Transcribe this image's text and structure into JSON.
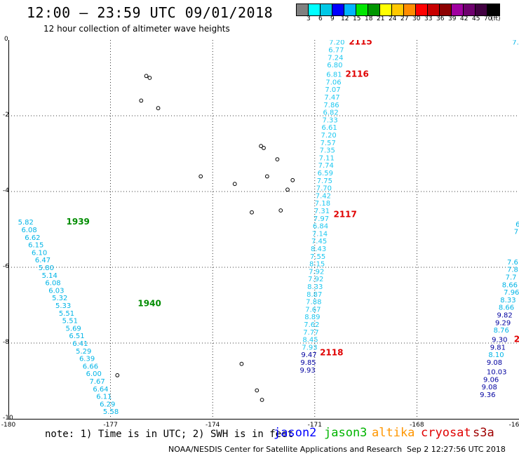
{
  "header": {
    "title": "12:00 — 23:59 UTC 09/01/2018",
    "subtitle": "12 hour collection of altimeter wave heights"
  },
  "legend": {
    "unit": "(ft)",
    "swatches": [
      {
        "color": "#808080",
        "label": "3"
      },
      {
        "color": "#00ffff",
        "label": "6"
      },
      {
        "color": "#00c8e6",
        "label": "9"
      },
      {
        "color": "#0000ff",
        "label": "12"
      },
      {
        "color": "#00b4ff",
        "label": "15"
      },
      {
        "color": "#00e600",
        "label": "18"
      },
      {
        "color": "#009600",
        "label": "21"
      },
      {
        "color": "#ffff00",
        "label": "24"
      },
      {
        "color": "#ffc800",
        "label": "27"
      },
      {
        "color": "#ff8c00",
        "label": "30"
      },
      {
        "color": "#ff0000",
        "label": "33"
      },
      {
        "color": "#c80000",
        "label": "36"
      },
      {
        "color": "#8c0000",
        "label": "39"
      },
      {
        "color": "#a000a0",
        "label": "42"
      },
      {
        "color": "#6e006e",
        "label": "45"
      },
      {
        "color": "#400040",
        "label": "70"
      },
      {
        "color": "#000000",
        "label": ""
      }
    ]
  },
  "map": {
    "lon_range": [
      -180,
      -165
    ],
    "lat_range": [
      -10,
      0
    ],
    "x_ticks": [
      "-180",
      "-177",
      "-174",
      "-171",
      "-168",
      "-16"
    ],
    "y_ticks": [
      "0",
      "-2",
      "-4",
      "-6",
      "-8",
      "-10"
    ],
    "grid": "dotted"
  },
  "chart_data": {
    "type": "scatter",
    "x_axis": "longitude",
    "y_axis": "latitude",
    "tracks": [
      {
        "name": "jason3",
        "time_labels": [
          {
            "text": "1939",
            "lon": -178.3,
            "lat": -4.8
          },
          {
            "text": "1940",
            "lon": -176.2,
            "lat": -6.95
          }
        ],
        "points": [
          {
            "lon": -179.72,
            "lat": -4.8,
            "v": "5.82"
          },
          {
            "lon": -179.62,
            "lat": -5.0,
            "v": "6.08"
          },
          {
            "lon": -179.52,
            "lat": -5.2,
            "v": "6.62"
          },
          {
            "lon": -179.42,
            "lat": -5.4,
            "v": "6.15"
          },
          {
            "lon": -179.32,
            "lat": -5.6,
            "v": "6.10"
          },
          {
            "lon": -179.22,
            "lat": -5.8,
            "v": "6.47"
          },
          {
            "lon": -179.12,
            "lat": -6.0,
            "v": "5.80"
          },
          {
            "lon": -179.02,
            "lat": -6.2,
            "v": "5.14"
          },
          {
            "lon": -178.92,
            "lat": -6.4,
            "v": "6.08"
          },
          {
            "lon": -178.82,
            "lat": -6.6,
            "v": "6.03"
          },
          {
            "lon": -178.72,
            "lat": -6.8,
            "v": "5.32"
          },
          {
            "lon": -178.62,
            "lat": -7.0,
            "v": "5.33"
          },
          {
            "lon": -178.52,
            "lat": -7.2,
            "v": "5.51"
          },
          {
            "lon": -178.42,
            "lat": -7.4,
            "v": "5.51"
          },
          {
            "lon": -178.32,
            "lat": -7.6,
            "v": "5.69"
          },
          {
            "lon": -178.22,
            "lat": -7.8,
            "v": "6.51"
          },
          {
            "lon": -178.12,
            "lat": -8.0,
            "v": "6.41"
          },
          {
            "lon": -178.02,
            "lat": -8.2,
            "v": "5.29"
          },
          {
            "lon": -177.92,
            "lat": -8.4,
            "v": "6.39"
          },
          {
            "lon": -177.82,
            "lat": -8.6,
            "v": "6.66"
          },
          {
            "lon": -177.72,
            "lat": -8.8,
            "v": "6.00"
          },
          {
            "lon": -177.62,
            "lat": -9.0,
            "v": "7.67"
          },
          {
            "lon": -177.52,
            "lat": -9.2,
            "v": "6.64"
          },
          {
            "lon": -177.42,
            "lat": -9.4,
            "v": "6.11"
          },
          {
            "lon": -177.32,
            "lat": -9.6,
            "v": "6.29"
          },
          {
            "lon": -177.22,
            "lat": -9.8,
            "v": "5.58"
          }
        ]
      },
      {
        "name": "cryosat",
        "time_labels": [
          {
            "text": "2115",
            "lon": -170.0,
            "lat": -0.05
          },
          {
            "text": "2116",
            "lon": -170.1,
            "lat": -0.9
          },
          {
            "text": "2117",
            "lon": -170.45,
            "lat": -4.6
          },
          {
            "text": "2118",
            "lon": -170.85,
            "lat": -8.25
          }
        ],
        "points": [
          {
            "lon": -170.58,
            "lat": -0.05,
            "v": "7.20"
          },
          {
            "lon": -170.6,
            "lat": -0.25,
            "v": "6.77"
          },
          {
            "lon": -170.62,
            "lat": -0.45,
            "v": "7.24"
          },
          {
            "lon": -170.64,
            "lat": -0.65,
            "v": "6.80"
          },
          {
            "lon": -170.66,
            "lat": -0.9,
            "v": "6.81"
          },
          {
            "lon": -170.68,
            "lat": -1.1,
            "v": "7.06"
          },
          {
            "lon": -170.7,
            "lat": -1.3,
            "v": "7.07"
          },
          {
            "lon": -170.72,
            "lat": -1.5,
            "v": "7.47"
          },
          {
            "lon": -170.74,
            "lat": -1.7,
            "v": "7.86"
          },
          {
            "lon": -170.76,
            "lat": -1.9,
            "v": "6.82"
          },
          {
            "lon": -170.78,
            "lat": -2.1,
            "v": "7.33"
          },
          {
            "lon": -170.8,
            "lat": -2.3,
            "v": "6.61"
          },
          {
            "lon": -170.82,
            "lat": -2.5,
            "v": "7.20"
          },
          {
            "lon": -170.84,
            "lat": -2.7,
            "v": "7.57"
          },
          {
            "lon": -170.86,
            "lat": -2.9,
            "v": "7.35"
          },
          {
            "lon": -170.88,
            "lat": -3.1,
            "v": "7.11"
          },
          {
            "lon": -170.9,
            "lat": -3.3,
            "v": "7.74"
          },
          {
            "lon": -170.92,
            "lat": -3.5,
            "v": "6.59"
          },
          {
            "lon": -170.94,
            "lat": -3.7,
            "v": "7.75"
          },
          {
            "lon": -170.96,
            "lat": -3.9,
            "v": "7.70"
          },
          {
            "lon": -170.98,
            "lat": -4.1,
            "v": "7.42"
          },
          {
            "lon": -171.0,
            "lat": -4.3,
            "v": "7.18"
          },
          {
            "lon": -171.02,
            "lat": -4.5,
            "v": "7.31"
          },
          {
            "lon": -171.04,
            "lat": -4.7,
            "v": "7.97"
          },
          {
            "lon": -171.06,
            "lat": -4.9,
            "v": "6.84"
          },
          {
            "lon": -171.08,
            "lat": -5.1,
            "v": "7.14"
          },
          {
            "lon": -171.1,
            "lat": -5.3,
            "v": "7.45"
          },
          {
            "lon": -171.12,
            "lat": -5.5,
            "v": "8.43"
          },
          {
            "lon": -171.14,
            "lat": -5.7,
            "v": "7.55"
          },
          {
            "lon": -171.16,
            "lat": -5.9,
            "v": "8.15"
          },
          {
            "lon": -171.18,
            "lat": -6.1,
            "v": "7.92"
          },
          {
            "lon": -171.2,
            "lat": -6.3,
            "v": "7.92"
          },
          {
            "lon": -171.22,
            "lat": -6.5,
            "v": "8.33"
          },
          {
            "lon": -171.24,
            "lat": -6.7,
            "v": "8.87"
          },
          {
            "lon": -171.26,
            "lat": -6.9,
            "v": "7.88"
          },
          {
            "lon": -171.28,
            "lat": -7.1,
            "v": "7.67"
          },
          {
            "lon": -171.3,
            "lat": -7.3,
            "v": "8.89"
          },
          {
            "lon": -171.32,
            "lat": -7.5,
            "v": "7.62"
          },
          {
            "lon": -171.34,
            "lat": -7.7,
            "v": "7.77"
          },
          {
            "lon": -171.36,
            "lat": -7.9,
            "v": "8.45"
          },
          {
            "lon": -171.38,
            "lat": -8.1,
            "v": "7.93"
          }
        ]
      },
      {
        "name": "jason2",
        "time_labels": [],
        "points": [
          {
            "lon": -171.4,
            "lat": -8.3,
            "v": "9.47"
          },
          {
            "lon": -171.42,
            "lat": -8.5,
            "v": "9.85"
          },
          {
            "lon": -171.44,
            "lat": -8.7,
            "v": "9.93"
          }
        ]
      },
      {
        "name": "altika",
        "time_labels": [],
        "points": [
          {
            "lon": -165.2,
            "lat": -0.05,
            "v": "7.",
            "cyan": true
          },
          {
            "lon": -165.2,
            "lat": -0.25,
            "v": "",
            "cyan": true
          },
          {
            "lon": -165.1,
            "lat": -4.85,
            "v": "6",
            "cyan": true
          },
          {
            "lon": -165.15,
            "lat": -5.05,
            "v": "7.",
            "cyan": true
          },
          {
            "lon": -165.2,
            "lat": -5.25,
            "v": "",
            "cyan": true
          },
          {
            "lon": -165.35,
            "lat": -5.85,
            "v": "7.6",
            "cyan": true
          },
          {
            "lon": -165.35,
            "lat": -6.05,
            "v": "7.8",
            "cyan": true
          },
          {
            "lon": -165.4,
            "lat": -6.25,
            "v": "7.7",
            "cyan": true
          },
          {
            "lon": -165.5,
            "lat": -6.45,
            "v": "8.66",
            "cyan": true
          },
          {
            "lon": -165.45,
            "lat": -6.65,
            "v": "7.96",
            "cyan": true
          },
          {
            "lon": -165.55,
            "lat": -6.85,
            "v": "8.33",
            "cyan": true
          },
          {
            "lon": -165.6,
            "lat": -7.05,
            "v": "8.66",
            "cyan": true
          },
          {
            "lon": -165.65,
            "lat": -7.25,
            "v": "9.82",
            "cyan": false
          },
          {
            "lon": -165.7,
            "lat": -7.45,
            "v": "9.29",
            "cyan": false
          },
          {
            "lon": -165.75,
            "lat": -7.65,
            "v": "8.76",
            "cyan": true
          },
          {
            "lon": -165.8,
            "lat": -7.9,
            "v": "9.30",
            "cyan": false
          },
          {
            "lon": -165.85,
            "lat": -8.1,
            "v": "9.81",
            "cyan": false
          },
          {
            "lon": -165.9,
            "lat": -8.3,
            "v": "8.10",
            "cyan": true
          },
          {
            "lon": -165.95,
            "lat": -8.5,
            "v": "9.08",
            "cyan": false
          },
          {
            "lon": -165.95,
            "lat": -8.75,
            "v": "10.03",
            "cyan": false
          },
          {
            "lon": -166.05,
            "lat": -8.95,
            "v": "9.06",
            "cyan": false
          },
          {
            "lon": -166.1,
            "lat": -9.15,
            "v": "9.08",
            "cyan": false
          },
          {
            "lon": -166.15,
            "lat": -9.35,
            "v": "9.36",
            "cyan": false
          }
        ]
      }
    ],
    "extra_labels": [
      {
        "text": "2",
        "lon": -165.15,
        "lat": -7.9,
        "color": "#e00000"
      }
    ],
    "islands": [
      {
        "lon": -175.95,
        "lat": -0.95
      },
      {
        "lon": -175.85,
        "lat": -1.0
      },
      {
        "lon": -176.1,
        "lat": -1.6
      },
      {
        "lon": -175.6,
        "lat": -1.8
      },
      {
        "lon": -172.58,
        "lat": -2.8
      },
      {
        "lon": -172.5,
        "lat": -2.85
      },
      {
        "lon": -172.1,
        "lat": -3.15
      },
      {
        "lon": -172.4,
        "lat": -3.6
      },
      {
        "lon": -171.65,
        "lat": -3.7
      },
      {
        "lon": -171.8,
        "lat": -3.95
      },
      {
        "lon": -174.35,
        "lat": -3.6
      },
      {
        "lon": -173.35,
        "lat": -3.8
      },
      {
        "lon": -172.85,
        "lat": -4.55
      },
      {
        "lon": -172.0,
        "lat": -4.5
      },
      {
        "lon": -176.8,
        "lat": -8.85
      },
      {
        "lon": -173.15,
        "lat": -8.55
      },
      {
        "lon": -172.7,
        "lat": -9.25
      },
      {
        "lon": -172.55,
        "lat": -9.5
      }
    ],
    "track_colors": {
      "jason3": "#00b4e6",
      "jason3_time": "#008c00",
      "cryosat": "#1ec8f0",
      "cryosat_time": "#e00000",
      "jason2": "#0000a0",
      "altika_cyan": "#00b4e6",
      "altika_dark": "#0000a0"
    }
  },
  "note": {
    "text": "note: 1) Time is in UTC; 2) SWH is in feet",
    "satellites": [
      {
        "name": "jason2",
        "color": "#0000ff"
      },
      {
        "name": "jason3",
        "color": "#00b400"
      },
      {
        "name": "altika",
        "color": "#ff9600"
      },
      {
        "name": "cryosat",
        "color": "#e00000"
      },
      {
        "name": "s3a",
        "color": "#a00000"
      }
    ]
  },
  "footer": {
    "credit": "NOAA/NESDIS Center for Satellite Applications and Research",
    "timestamp": "Sep  2 12:27:56 UTC 2018"
  }
}
